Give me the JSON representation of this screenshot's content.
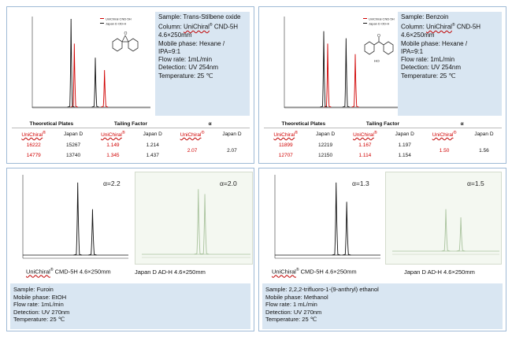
{
  "panels": {
    "p1": {
      "legend": [
        "UniChiral CND-5H",
        "Japan D  OD-H"
      ],
      "info": {
        "sample": "Sample: Trans-Stilbene oxide",
        "column_prefix": "Column: ",
        "column_brand": "UniChiral",
        "column_reg": "®",
        "column_suffix": " CND-5H",
        "column_dim": "4.6×250mm",
        "mobile": "Mobile phase: Hexane /",
        "mobile2": "IPA=9:1",
        "flow": "Flow rate: 1mL/min",
        "detection": "Detection: UV 254nm",
        "temperature": "Temperature: 25 ℃"
      },
      "table": {
        "h_plates": "Theoretical Plates",
        "h_tailing": "Tailing Factor",
        "h_alpha": "α",
        "sub_unichiral": "UniChiral",
        "sub_reg": "®",
        "sub_japan": "Japan D",
        "rows": [
          {
            "u_plates": "16222",
            "j_plates": "15267",
            "u_tail": "1.149",
            "j_tail": "1.214"
          },
          {
            "u_plates": "14779",
            "j_plates": "13740",
            "u_tail": "1.345",
            "j_tail": "1.437"
          }
        ],
        "u_alpha": "2.07",
        "j_alpha": "2.07"
      },
      "chart_data": {
        "type": "line",
        "series": [
          {
            "name": "UniChiral CND-5H",
            "color": "#d00000",
            "peaks": [
              {
                "x": 6.4,
                "h": 0.72
              },
              {
                "x": 11.0,
                "h": 0.42
              }
            ]
          },
          {
            "name": "Japan D  OD-H",
            "color": "#111111",
            "peaks": [
              {
                "x": 5.9,
                "h": 1.0
              },
              {
                "x": 9.6,
                "h": 0.56
              }
            ]
          }
        ],
        "xlim": [
          0,
          18
        ]
      }
    },
    "p2": {
      "legend": [
        "UniChiral CND-5H",
        "Japan D  OD-H"
      ],
      "info": {
        "sample": "Sample: Benzoin",
        "column_prefix": "Column: ",
        "column_brand": "UniChiral",
        "column_reg": "®",
        "column_suffix": " CND-5H",
        "column_dim": "4.6×250mm",
        "mobile": "Mobile phase: Hexane /",
        "mobile2": "IPA=9:1",
        "flow": "Flow rate: 1mL/min",
        "detection": "Detection: UV 254nm",
        "temperature": "Temperature: 25 ℃"
      },
      "table": {
        "h_plates": "Theoretical Plates",
        "h_tailing": "Tailing Factor",
        "h_alpha": "α",
        "sub_unichiral": "UniChiral",
        "sub_reg": "®",
        "sub_japan": "Japan D",
        "rows": [
          {
            "u_plates": "11899",
            "j_plates": "12219",
            "u_tail": "1.167",
            "j_tail": "1.197"
          },
          {
            "u_plates": "12707",
            "j_plates": "12150",
            "u_tail": "1.114",
            "j_tail": "1.154"
          }
        ],
        "u_alpha": "1.50",
        "j_alpha": "1.56"
      },
      "chart_data": {
        "type": "line",
        "series": [
          {
            "name": "UniChiral CND-5H",
            "color": "#d00000",
            "peaks": [
              {
                "x": 6.6,
                "h": 0.72
              },
              {
                "x": 10.8,
                "h": 0.6
              }
            ]
          },
          {
            "name": "Japan D  OD-H",
            "color": "#111111",
            "peaks": [
              {
                "x": 6.0,
                "h": 0.86
              },
              {
                "x": 9.4,
                "h": 0.78
              }
            ]
          }
        ],
        "xlim": [
          0,
          18
        ]
      }
    },
    "p3": {
      "alpha_left": "α=2.2",
      "alpha_right": "α=2.0",
      "caption_left_brand": "UniChiral",
      "caption_left_reg": "®",
      "caption_left_rest": " CMD-5H 4.6×250mm",
      "caption_right": "Japan D  AD-H 4.6×250mm",
      "conditions": [
        "Sample: Furoin",
        "Mobile phase: EtOH",
        "Flow rate: 1mL/min",
        "Detection: UV 270nm",
        "Temperature: 25 ℃"
      ],
      "chart_data": {
        "type": "line",
        "series": [
          {
            "name": "",
            "color": "#111111",
            "peaks": [
              {
                "x": 0.52,
                "h": 0.98
              },
              {
                "x": 0.66,
                "h": 0.62
              }
            ]
          },
          {
            "name": "",
            "color": "#a8c29c",
            "peaks": [
              {
                "x": 0.52,
                "h": 0.92
              },
              {
                "x": 0.58,
                "h": 0.85
              }
            ]
          }
        ]
      }
    },
    "p4": {
      "alpha_left": "α=1.3",
      "alpha_right": "α=1.5",
      "caption_left_brand": "UniChiral",
      "caption_left_reg": "®",
      "caption_left_rest": " CMD-5H 4.6×250mm",
      "caption_right": "Japan D  AD-H 4.6×250mm",
      "conditions": [
        "Sample: 2,2,2-trifluoro-1-(9-anthryl) ethanol",
        "Mobile phase: Methanol",
        "Flow rate: 1 mL/min",
        "Detection: UV 270nm",
        "Temperature: 25 ℃"
      ],
      "chart_data": {
        "type": "line",
        "series": [
          {
            "name": "",
            "color": "#111111",
            "peaks": [
              {
                "x": 0.58,
                "h": 0.98
              },
              {
                "x": 0.68,
                "h": 0.72
              }
            ]
          },
          {
            "name": "",
            "color": "#a8c29c",
            "peaks": [
              {
                "x": 0.5,
                "h": 0.62
              },
              {
                "x": 0.64,
                "h": 0.5
              }
            ]
          }
        ]
      }
    }
  }
}
